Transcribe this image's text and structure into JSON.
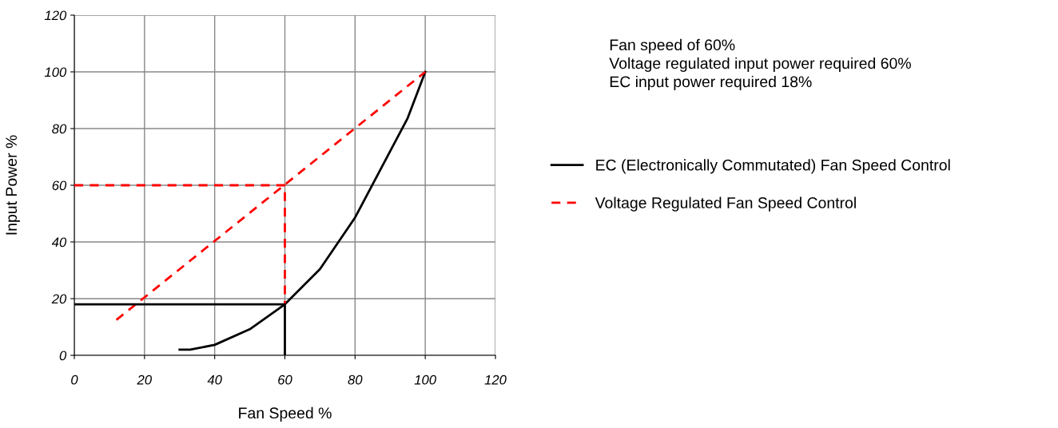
{
  "chart_data": {
    "type": "line",
    "xlabel": "Fan Speed %",
    "ylabel": "Input Power %",
    "xlim": [
      0,
      120
    ],
    "xticks": [
      0,
      20,
      40,
      60,
      80,
      100,
      120
    ],
    "ylim": [
      0,
      120
    ],
    "yticks": [
      0,
      20,
      40,
      60,
      80,
      100,
      120
    ],
    "grid": true,
    "legend": "right",
    "marker": "none",
    "series": [
      {
        "name": "EC (Electronically Commutated) Fan Speed Control",
        "color": "#000000",
        "line_style": "solid",
        "x": [
          30,
          33,
          40,
          50,
          60,
          70,
          80,
          90,
          95,
          100
        ],
        "values": [
          2,
          2,
          3.7,
          9.2,
          18,
          30.4,
          48.6,
          72,
          83.7,
          100
        ]
      },
      {
        "name": "Voltage Regulated Fan Speed Control",
        "color": "#ff0000",
        "line_style": "dashed",
        "x": [
          12,
          100
        ],
        "values": [
          12.5,
          100
        ]
      },
      {
        "color": "#ff0000",
        "line_style": "dashed",
        "x": [
          0,
          60,
          60
        ],
        "values": [
          60,
          60,
          18
        ]
      },
      {
        "color": "#000000",
        "line_style": "solid",
        "x": [
          0,
          60,
          60
        ],
        "values": [
          18,
          18,
          0
        ]
      }
    ],
    "annotations": [
      "Fan speed of 60%",
      "Voltage regulated input power required 60%",
      "EC input power required 18%"
    ]
  }
}
